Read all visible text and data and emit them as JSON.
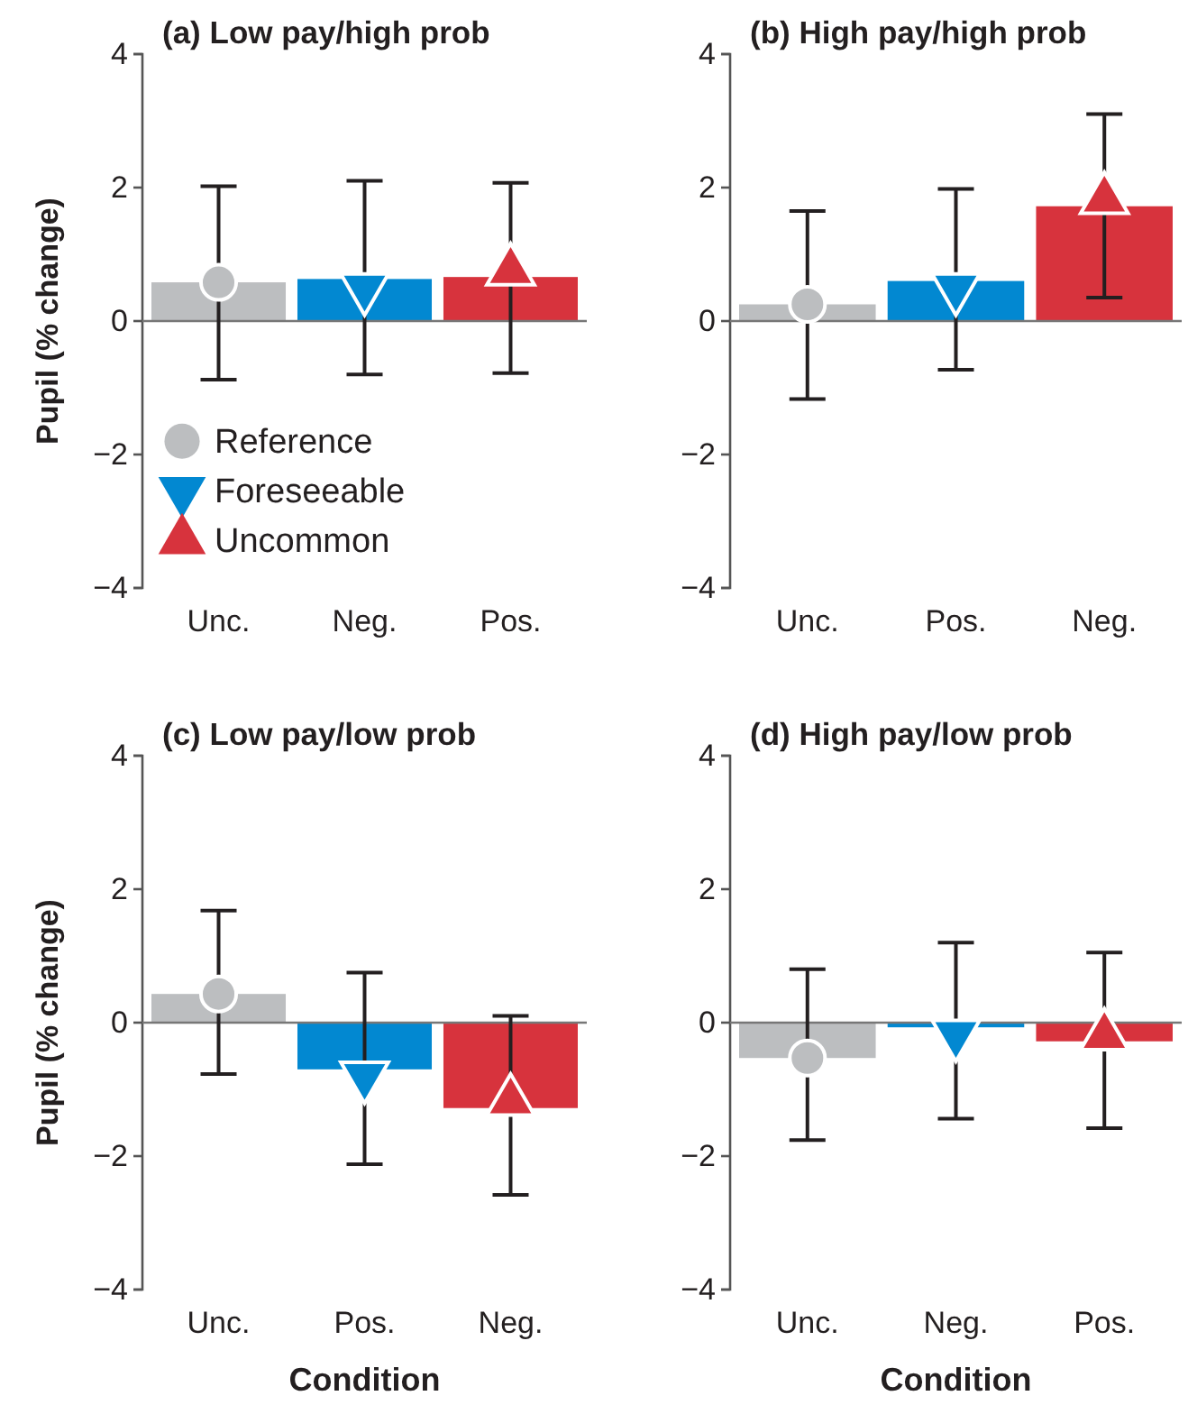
{
  "chart_data": [
    {
      "type": "bar",
      "title": "(a) Low pay/high prob",
      "ylabel": "Pupil (% change)",
      "categories": [
        "Unc.",
        "Neg.",
        "Pos."
      ],
      "ylim": [
        -4,
        4
      ],
      "yticks": [
        -4,
        -2,
        0,
        2,
        4
      ],
      "legend": "bottom left",
      "ref_lines": [
        {
          "axis": "y",
          "value": 0,
          "color": "#777777"
        }
      ],
      "series": [
        {
          "colors": [
            "#bcbec0",
            "#0288d1",
            "#d7333d"
          ],
          "values": [
            0.58,
            0.63,
            0.66
          ],
          "errors": [
            [
              -0.88,
              2.02
            ],
            [
              -0.8,
              2.1
            ],
            [
              -0.78,
              2.07
            ]
          ]
        },
        {
          "type": "scatter",
          "name": "Reference",
          "color": "#bcbec0",
          "marker": "circle",
          "x": [
            "Unc."
          ],
          "values": [
            0.58
          ]
        },
        {
          "type": "scatter",
          "name": "Foreseeable",
          "color": "#0288d1",
          "marker": "triangle-down",
          "x": [
            "Neg."
          ],
          "values": [
            0.5
          ]
        },
        {
          "type": "scatter",
          "name": "Uncommon",
          "color": "#d7333d",
          "marker": "triangle",
          "x": [
            "Pos."
          ],
          "values": [
            0.75
          ]
        }
      ]
    },
    {
      "type": "bar",
      "title": "(b) High pay/high prob",
      "categories": [
        "Unc.",
        "Pos.",
        "Neg."
      ],
      "ylim": [
        -4,
        4
      ],
      "yticks": [
        -4,
        -2,
        0,
        2,
        4
      ],
      "legend": false,
      "ref_lines": [
        {
          "axis": "y",
          "value": 0,
          "color": "#777777"
        }
      ],
      "series": [
        {
          "colors": [
            "#bcbec0",
            "#0288d1",
            "#d7333d"
          ],
          "values": [
            0.25,
            0.6,
            1.72
          ],
          "errors": [
            [
              -1.17,
              1.65
            ],
            [
              -0.73,
              1.98
            ],
            [
              0.35,
              3.1
            ]
          ]
        },
        {
          "type": "scatter",
          "color": "#bcbec0",
          "marker": "circle",
          "x": [
            "Unc."
          ],
          "values": [
            0.25
          ]
        },
        {
          "type": "scatter",
          "color": "#0288d1",
          "marker": "triangle-down",
          "x": [
            "Pos."
          ],
          "values": [
            0.5
          ]
        },
        {
          "type": "scatter",
          "color": "#d7333d",
          "marker": "triangle",
          "x": [
            "Neg."
          ],
          "values": [
            1.82
          ]
        }
      ]
    },
    {
      "type": "bar",
      "title": "(c) Low pay/low prob",
      "ylabel": "Pupil (% change)",
      "xlabel": "Condition",
      "categories": [
        "Unc.",
        "Pos.",
        "Neg."
      ],
      "ylim": [
        -4,
        4
      ],
      "yticks": [
        -4,
        -2,
        0,
        2,
        4
      ],
      "legend": false,
      "ref_lines": [
        {
          "axis": "y",
          "value": 0,
          "color": "#777777"
        }
      ],
      "series": [
        {
          "colors": [
            "#bcbec0",
            "#0288d1",
            "#d7333d"
          ],
          "values": [
            0.43,
            -0.7,
            -1.28
          ],
          "errors": [
            [
              -0.77,
              1.68
            ],
            [
              -2.12,
              0.75
            ],
            [
              -2.58,
              0.1
            ]
          ]
        },
        {
          "type": "scatter",
          "color": "#bcbec0",
          "marker": "circle",
          "x": [
            "Unc."
          ],
          "values": [
            0.43
          ]
        },
        {
          "type": "scatter",
          "color": "#0288d1",
          "marker": "triangle-down",
          "x": [
            "Pos."
          ],
          "values": [
            -0.8
          ]
        },
        {
          "type": "scatter",
          "color": "#d7333d",
          "marker": "triangle",
          "x": [
            "Neg."
          ],
          "values": [
            -1.18
          ]
        }
      ]
    },
    {
      "type": "bar",
      "title": "(d) High pay/low prob",
      "xlabel": "Condition",
      "categories": [
        "Unc.",
        "Neg.",
        "Pos."
      ],
      "ylim": [
        -4,
        4
      ],
      "yticks": [
        -4,
        -2,
        0,
        2,
        4
      ],
      "legend": false,
      "ref_lines": [
        {
          "axis": "y",
          "value": 0,
          "color": "#777777"
        }
      ],
      "series": [
        {
          "colors": [
            "#bcbec0",
            "#0288d1",
            "#d7333d"
          ],
          "values": [
            -0.53,
            -0.07,
            -0.28
          ],
          "errors": [
            [
              -1.76,
              0.8
            ],
            [
              -1.44,
              1.2
            ],
            [
              -1.58,
              1.05
            ]
          ]
        },
        {
          "type": "scatter",
          "color": "#bcbec0",
          "marker": "circle",
          "x": [
            "Unc."
          ],
          "values": [
            -0.53
          ]
        },
        {
          "type": "scatter",
          "color": "#0288d1",
          "marker": "triangle-down",
          "x": [
            "Neg."
          ],
          "values": [
            -0.17
          ]
        },
        {
          "type": "scatter",
          "color": "#d7333d",
          "marker": "triangle",
          "x": [
            "Pos."
          ],
          "values": [
            -0.2
          ]
        }
      ]
    }
  ]
}
